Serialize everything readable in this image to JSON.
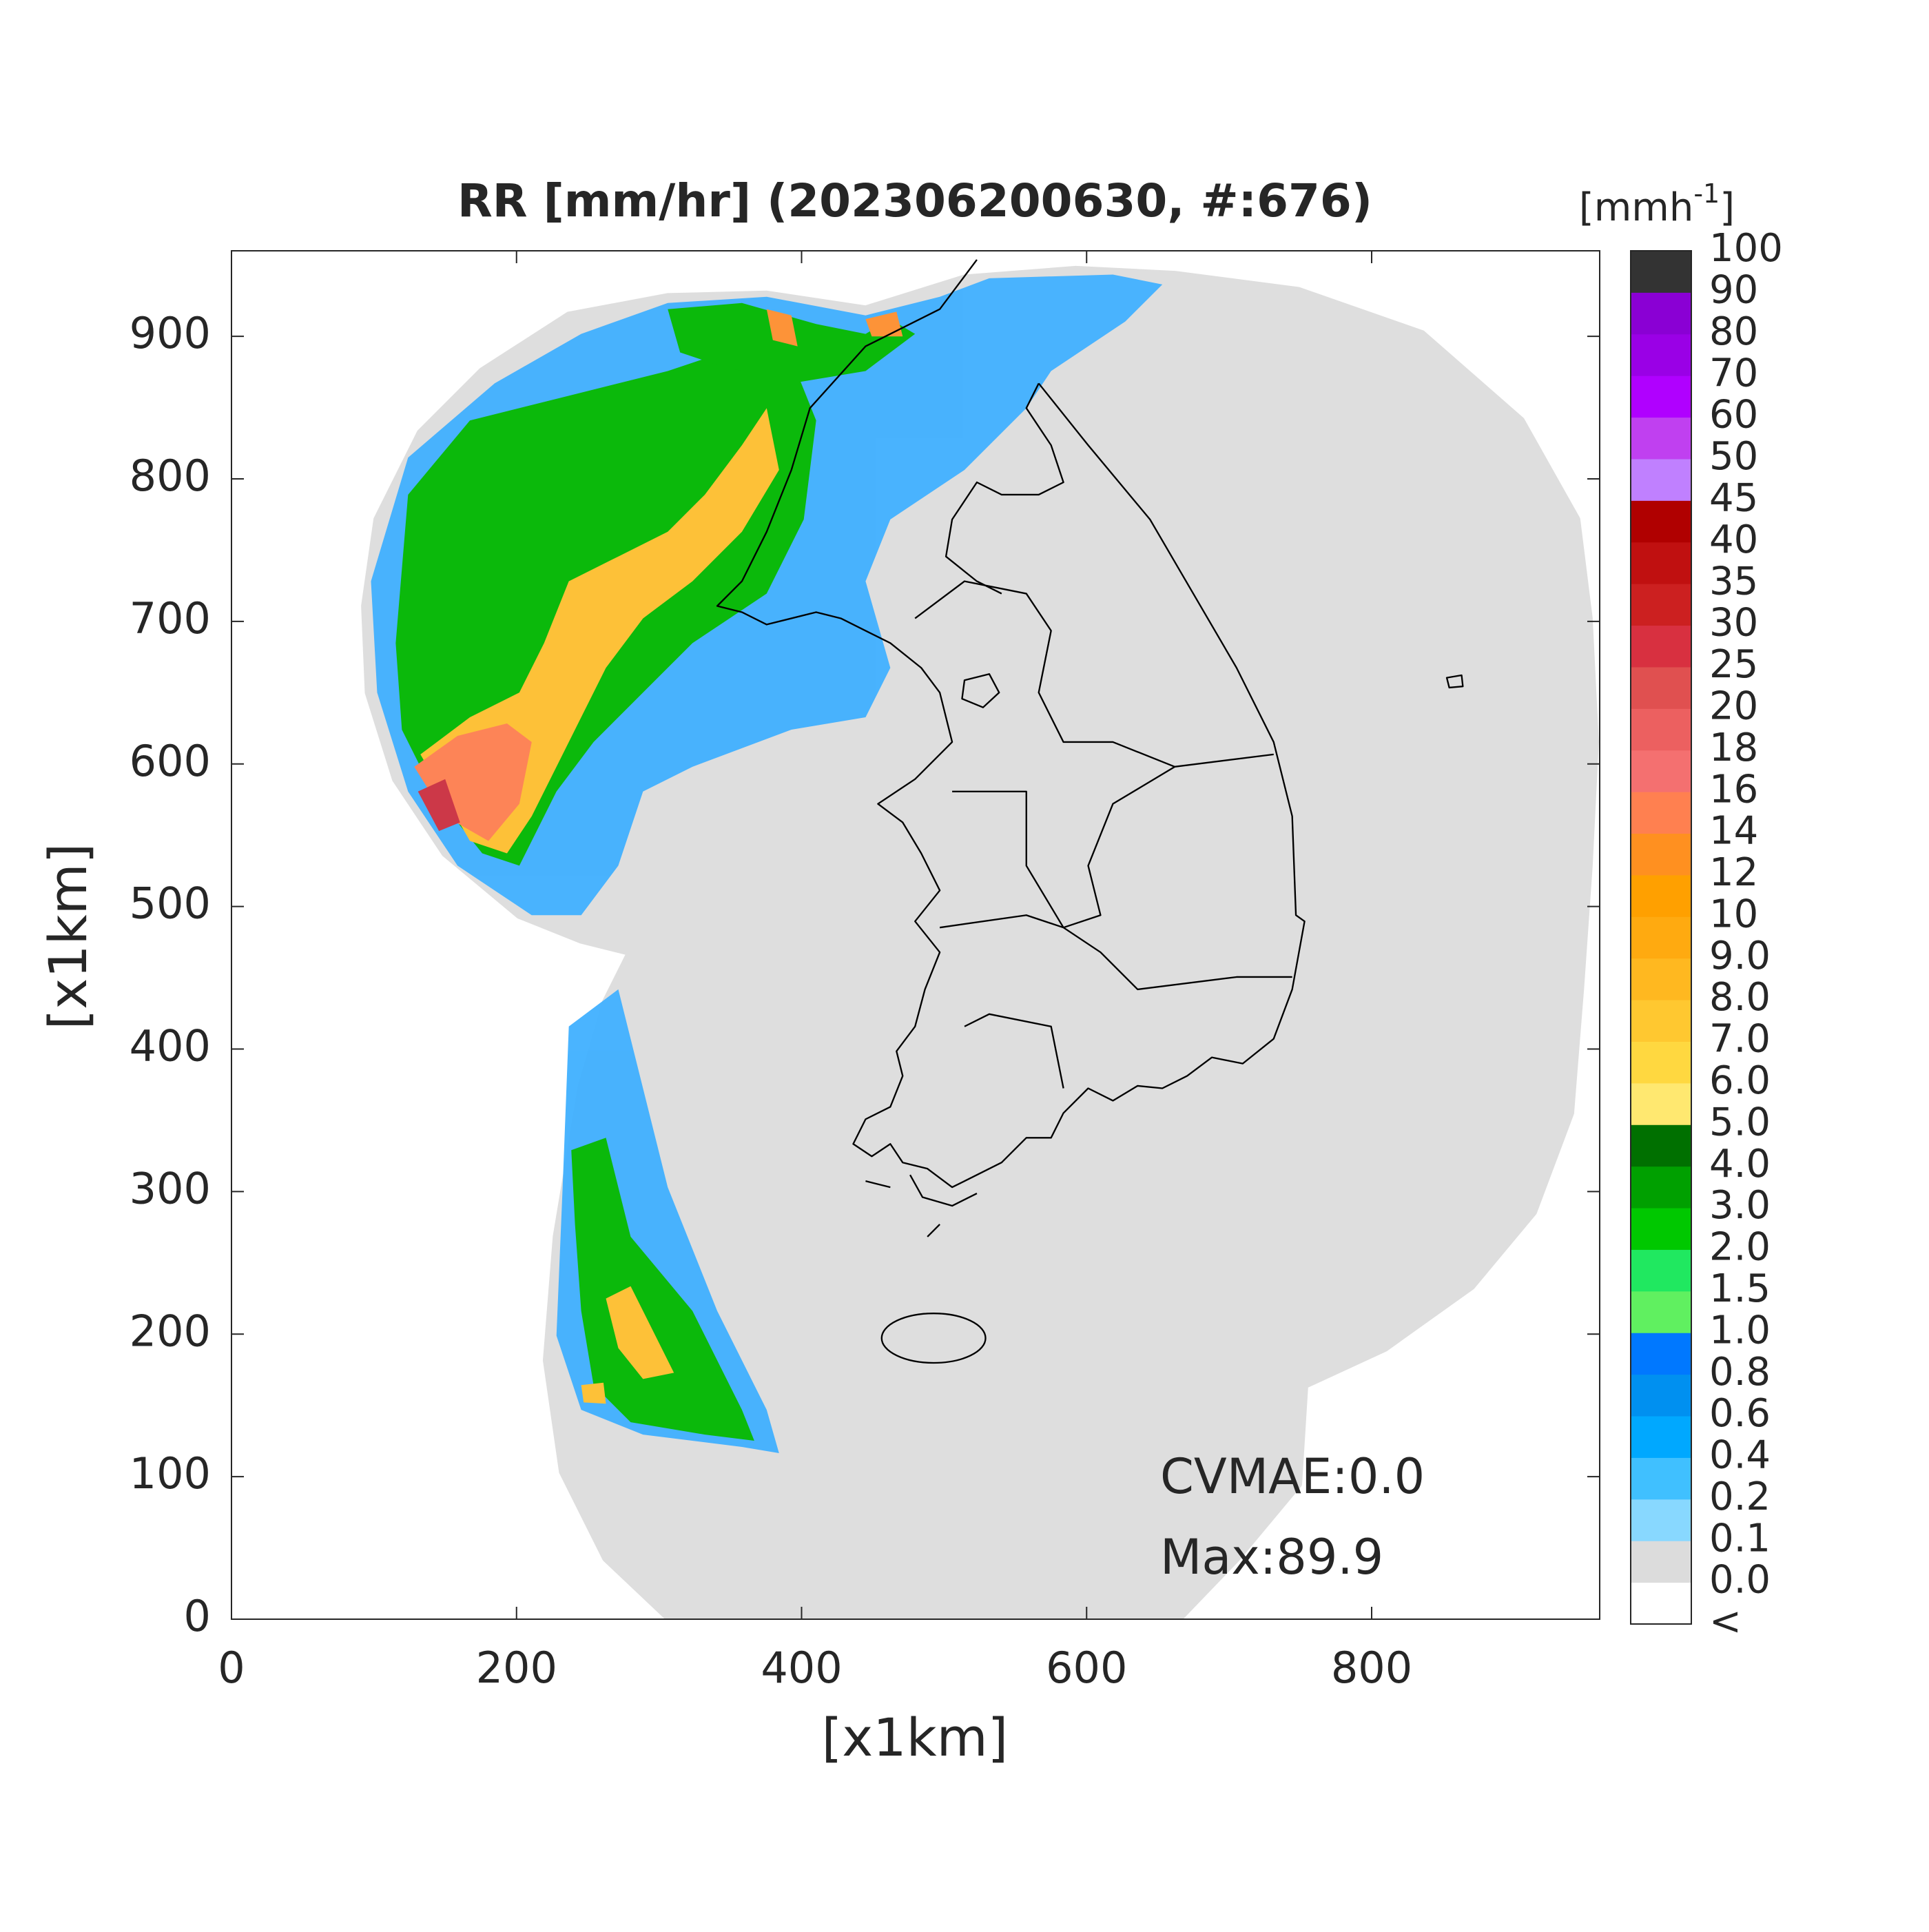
{
  "chart_data": {
    "type": "radar-map",
    "title": "RR [mm/hr] (202306200630, #:676)",
    "x_label": "[x1km]",
    "y_label": "[x1km]",
    "xlim": [
      0,
      960
    ],
    "ylim": [
      0,
      960
    ],
    "xticks": [
      0,
      200,
      400,
      600,
      800
    ],
    "yticks": [
      0,
      100,
      200,
      300,
      400,
      500,
      600,
      700,
      800,
      900
    ],
    "annotations": [
      "CVMAE:0.0",
      "Max:89.9"
    ],
    "colorbar": {
      "unit": "[mmh",
      "unit_sup": "-1",
      "unit_end": "]",
      "labels": [
        "<",
        "0.0",
        "0.1",
        "0.2",
        "0.4",
        "0.6",
        "0.8",
        "1.0",
        "1.5",
        "2.0",
        "3.0",
        "4.0",
        "5.0",
        "6.0",
        "7.0",
        "8.0",
        "9.0",
        "10",
        "12",
        "14",
        "16",
        "18",
        "20",
        "25",
        "30",
        "35",
        "40",
        "45",
        "50",
        "60",
        "70",
        "80",
        "90",
        "100"
      ],
      "colors": [
        "#ffffff",
        "#dcdcdc",
        "#88d8ff",
        "#40c0ff",
        "#00a8ff",
        "#0090f0",
        "#0078ff",
        "#60f060",
        "#20e860",
        "#00c800",
        "#00a000",
        "#007000",
        "#ffe870",
        "#ffd840",
        "#ffc830",
        "#ffb820",
        "#ffaa10",
        "#ffa000",
        "#ff9020",
        "#ff8050",
        "#f47070",
        "#ec6060",
        "#e05050",
        "#d83040",
        "#cc2020",
        "#c01010",
        "#b00000",
        "#c080ff",
        "#c040f0",
        "#b000ff",
        "#9a00e6",
        "#8a00d4",
        "#333333"
      ]
    }
  }
}
